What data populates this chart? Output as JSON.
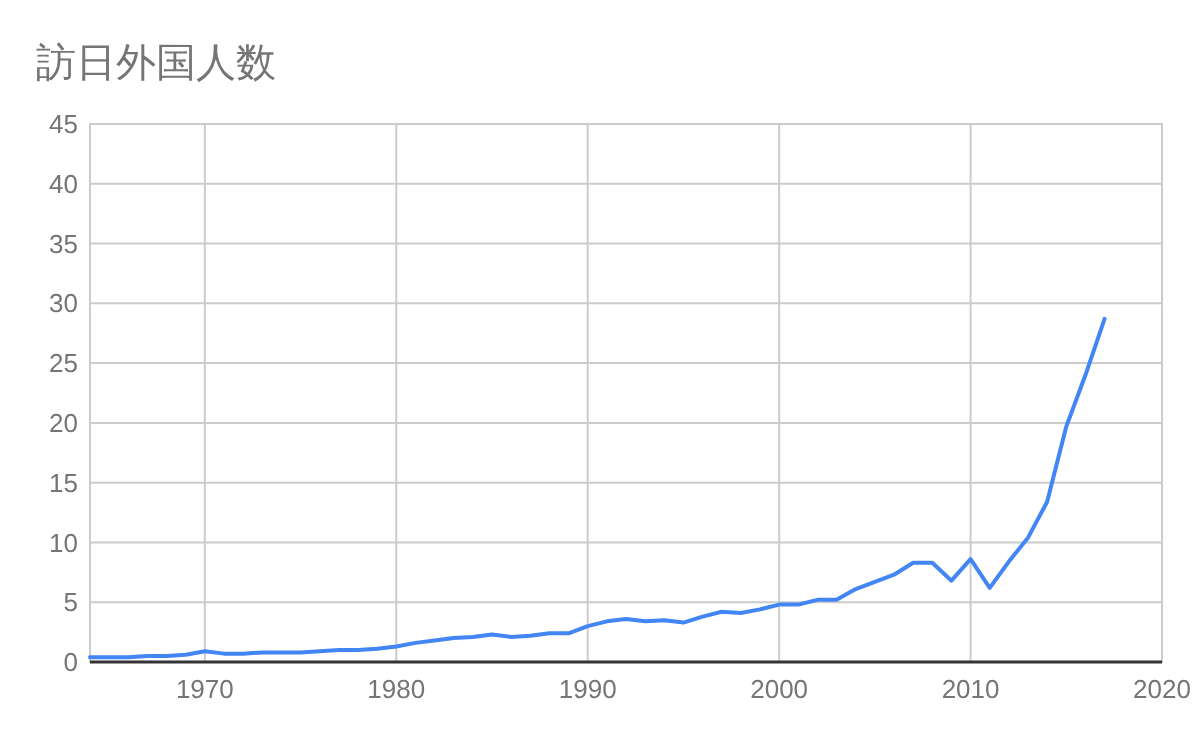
{
  "chart_data": {
    "type": "line",
    "title": "訪日外国人数",
    "x": [
      1964,
      1965,
      1966,
      1967,
      1968,
      1969,
      1970,
      1971,
      1972,
      1973,
      1974,
      1975,
      1976,
      1977,
      1978,
      1979,
      1980,
      1981,
      1982,
      1983,
      1984,
      1985,
      1986,
      1987,
      1988,
      1989,
      1990,
      1991,
      1992,
      1993,
      1994,
      1995,
      1996,
      1997,
      1998,
      1999,
      2000,
      2001,
      2002,
      2003,
      2004,
      2005,
      2006,
      2007,
      2008,
      2009,
      2010,
      2011,
      2012,
      2013,
      2014,
      2015,
      2016,
      2017
    ],
    "series": [
      {
        "color": "#4285f4",
        "values": [
          0.4,
          0.4,
          0.4,
          0.5,
          0.5,
          0.6,
          0.9,
          0.7,
          0.7,
          0.8,
          0.8,
          0.8,
          0.9,
          1.0,
          1.0,
          1.1,
          1.3,
          1.6,
          1.8,
          2.0,
          2.1,
          2.3,
          2.1,
          2.2,
          2.4,
          2.4,
          3.0,
          3.4,
          3.6,
          3.4,
          3.5,
          3.3,
          3.8,
          4.2,
          4.1,
          4.4,
          4.8,
          4.8,
          5.2,
          5.2,
          6.1,
          6.7,
          7.3,
          8.3,
          8.3,
          6.8,
          8.6,
          6.2,
          8.4,
          10.4,
          13.4,
          19.7,
          24.0,
          28.7
        ]
      }
    ],
    "xlim": [
      1964,
      2020
    ],
    "xticks": [
      1970,
      1980,
      1990,
      2000,
      2010,
      2020
    ],
    "ylim": [
      0,
      45
    ],
    "yticks": [
      0,
      5,
      10,
      15,
      20,
      25,
      30,
      35,
      40,
      45
    ],
    "grid": true,
    "marker": "none",
    "line_style": "solid"
  }
}
